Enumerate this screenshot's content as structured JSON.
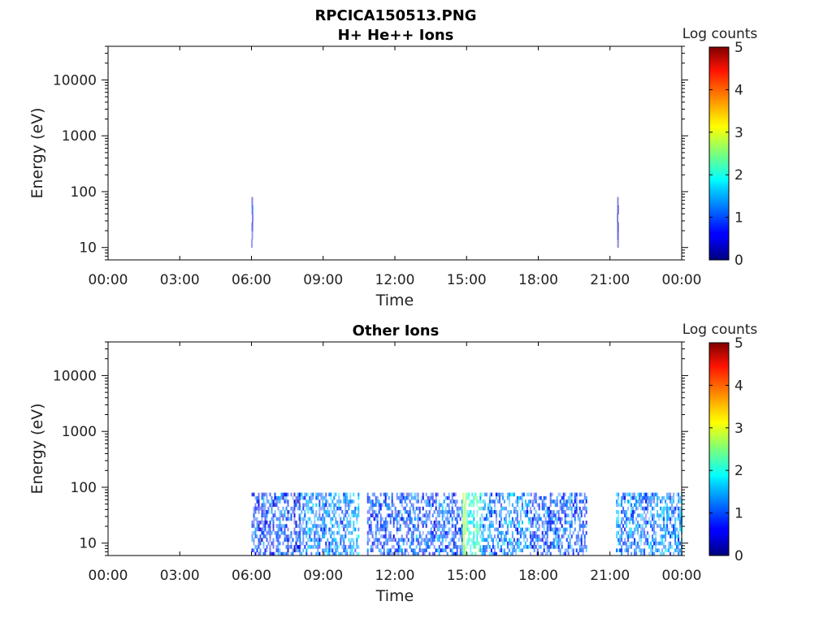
{
  "figure": {
    "title": "RPCICA150513.PNG"
  },
  "chart_data": [
    {
      "type": "heatmap",
      "title": "H+ He++ Ions",
      "xlabel": "Time",
      "ylabel": "Energy (eV)",
      "yscale": "log",
      "xlim": [
        "00:00",
        "24:00"
      ],
      "ylim": [
        6,
        40000
      ],
      "xticks": [
        "00:00",
        "03:00",
        "06:00",
        "09:00",
        "12:00",
        "15:00",
        "18:00",
        "21:00",
        "00:00"
      ],
      "yticks": [
        10,
        100,
        1000,
        10000
      ],
      "ytick_labels": [
        "10",
        "100",
        "1000",
        "10000"
      ],
      "energy_range_observed": [
        6,
        80
      ],
      "colorbar": {
        "label": "Log counts",
        "min": 0,
        "max": 5,
        "ticks": [
          "0",
          "1",
          "2",
          "3",
          "4",
          "5"
        ],
        "colormap": "jet"
      },
      "activity": [
        {
          "start": "06:00",
          "end": "06:03",
          "emin": 10,
          "emax": 80,
          "level": 0.8
        },
        {
          "start": "21:18",
          "end": "21:21",
          "emin": 10,
          "emax": 80,
          "level": 0.3
        }
      ]
    },
    {
      "type": "heatmap",
      "title": "Other Ions",
      "xlabel": "Time",
      "ylabel": "Energy (eV)",
      "yscale": "log",
      "xlim": [
        "00:00",
        "24:00"
      ],
      "ylim": [
        6,
        40000
      ],
      "xticks": [
        "00:00",
        "03:00",
        "06:00",
        "09:00",
        "12:00",
        "15:00",
        "18:00",
        "21:00",
        "00:00"
      ],
      "yticks": [
        10,
        100,
        1000,
        10000
      ],
      "ytick_labels": [
        "10",
        "100",
        "1000",
        "10000"
      ],
      "energy_range_observed": [
        6,
        80
      ],
      "colorbar": {
        "label": "Log counts",
        "min": 0,
        "max": 5,
        "ticks": [
          "0",
          "1",
          "2",
          "3",
          "4",
          "5"
        ],
        "colormap": "jet"
      },
      "activity": [
        {
          "start": "06:00",
          "end": "08:00",
          "emin": 6,
          "emax": 80,
          "level": 0.9
        },
        {
          "start": "08:00",
          "end": "10:30",
          "emin": 6,
          "emax": 80,
          "level": 1.3
        },
        {
          "start": "10:50",
          "end": "14:50",
          "emin": 6,
          "emax": 80,
          "level": 1.0
        },
        {
          "start": "14:50",
          "end": "15:00",
          "emin": 6,
          "emax": 80,
          "level": 2.8
        },
        {
          "start": "15:00",
          "end": "15:40",
          "emin": 6,
          "emax": 80,
          "level": 2.0
        },
        {
          "start": "15:40",
          "end": "17:40",
          "emin": 6,
          "emax": 80,
          "level": 1.3
        },
        {
          "start": "17:40",
          "end": "20:00",
          "emin": 6,
          "emax": 80,
          "level": 1.0
        },
        {
          "start": "21:15",
          "end": "24:00",
          "emin": 6,
          "emax": 80,
          "level": 1.2
        }
      ],
      "gaps": [
        {
          "start": "00:00",
          "end": "06:00"
        },
        {
          "start": "10:30",
          "end": "10:50"
        },
        {
          "start": "20:00",
          "end": "21:15"
        }
      ]
    }
  ]
}
